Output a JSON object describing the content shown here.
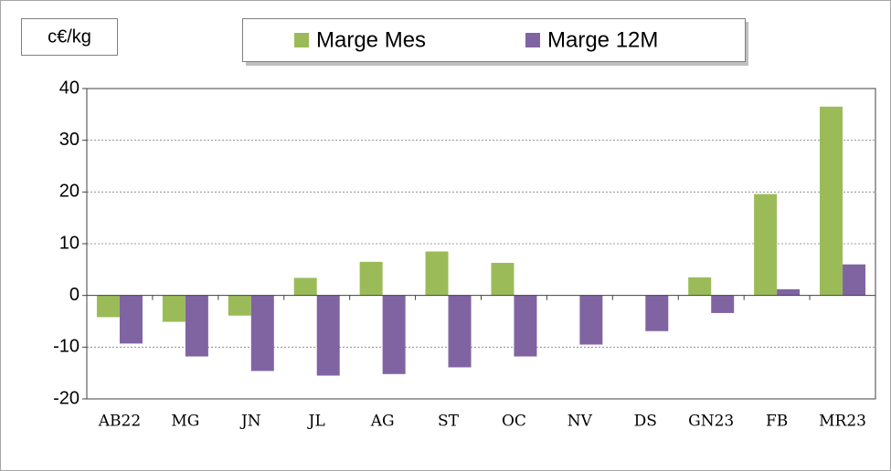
{
  "chart_data": {
    "type": "bar",
    "ylabel": "c€/kg",
    "categories": [
      "AB22",
      "MG",
      "JN",
      "JL",
      "AG",
      "ST",
      "OC",
      "NV",
      "DS",
      "GN23",
      "FB",
      "MR23"
    ],
    "series": [
      {
        "name": "Marge Mes",
        "color": "#9bbb59",
        "values": [
          -4.2,
          -5.1,
          -3.9,
          3.4,
          6.5,
          8.5,
          6.3,
          0,
          0,
          3.5,
          19.6,
          36.5
        ]
      },
      {
        "name": "Marge 12M",
        "color": "#8064a2",
        "values": [
          -9.3,
          -11.8,
          -14.6,
          -15.5,
          -15.2,
          -13.9,
          -11.8,
          -9.5,
          -6.9,
          -3.4,
          1.2,
          6.0
        ]
      }
    ],
    "ylim": [
      -20,
      40
    ],
    "yticks": [
      -20,
      -10,
      0,
      10,
      20,
      30,
      40
    ],
    "grid": true,
    "legend": "top"
  }
}
